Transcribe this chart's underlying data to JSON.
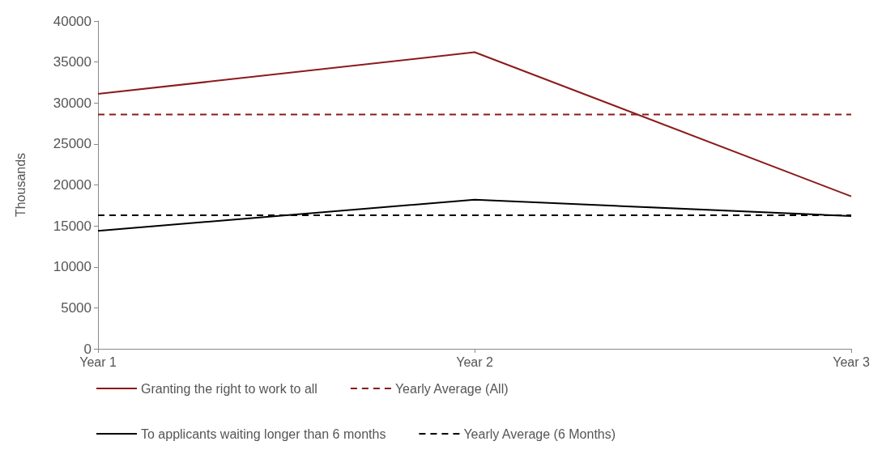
{
  "chart_data": {
    "type": "line",
    "ylabel": "Thousands",
    "categories": [
      "Year 1",
      "Year 2",
      "Year 3"
    ],
    "ylim": [
      0,
      40000
    ],
    "yticks": [
      0,
      5000,
      10000,
      15000,
      20000,
      25000,
      30000,
      35000,
      40000
    ],
    "grid": false,
    "legend": "bottom",
    "marker": "none",
    "series": [
      {
        "name": "Granting the right to work to all",
        "color": "#8b1a1a",
        "line_style": "solid",
        "values": [
          31100,
          36200,
          18600
        ]
      },
      {
        "name": "Yearly Average (All)",
        "color": "#8b1a1a",
        "line_style": "dashed",
        "values": [
          28600,
          28600,
          28600
        ]
      },
      {
        "name": "To applicants waiting longer than 6 months",
        "color": "#000000",
        "line_style": "solid",
        "values": [
          14400,
          18200,
          16200
        ]
      },
      {
        "name": "Yearly Average (6 Months)",
        "color": "#000000",
        "line_style": "dashed",
        "values": [
          16300,
          16300,
          16300
        ]
      }
    ]
  }
}
